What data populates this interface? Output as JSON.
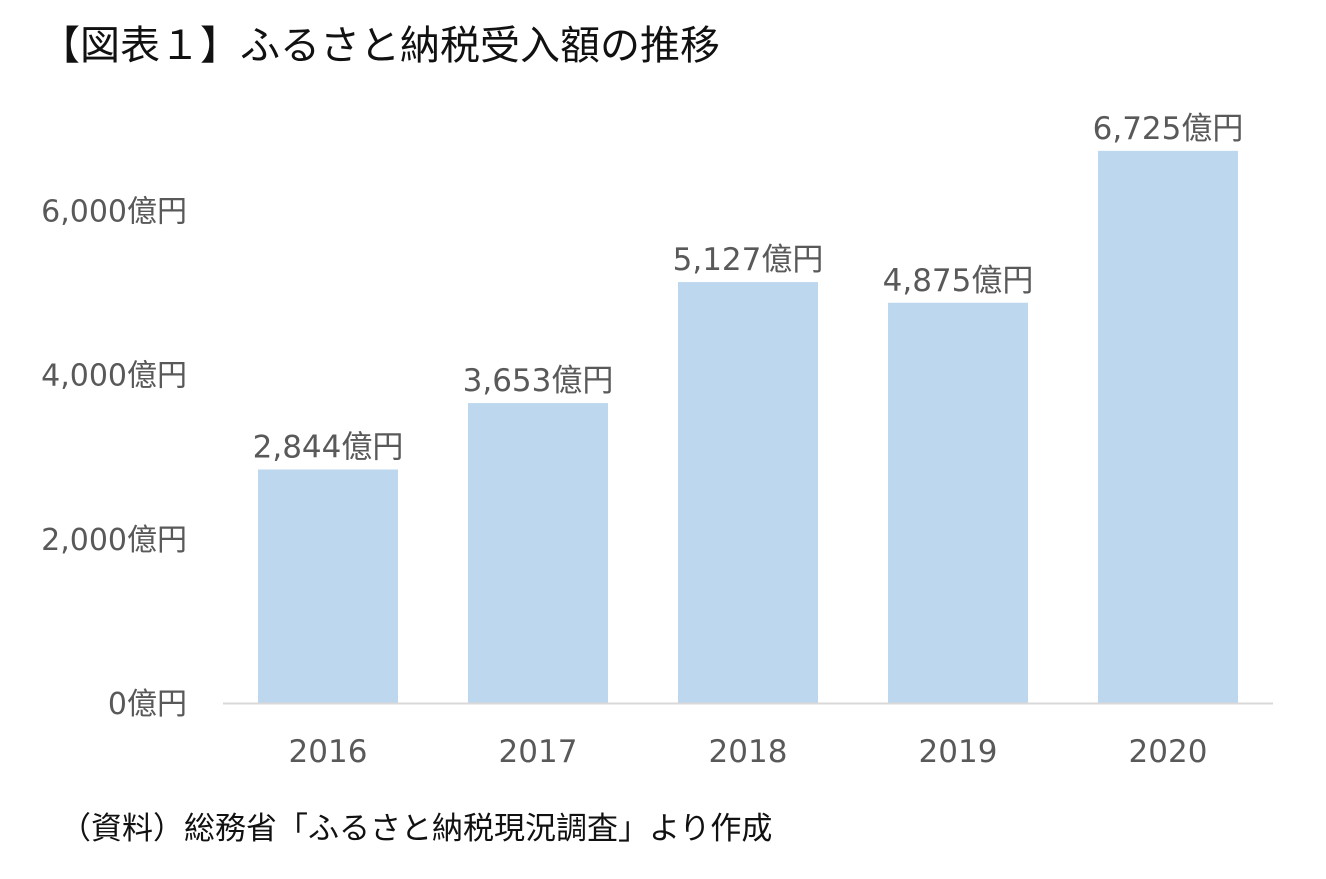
{
  "title": "【図表１】ふるさと納税受入額の推移",
  "source_note": "（資料）総務省「ふるさと納税現況調査」より作成",
  "chart_data": {
    "type": "bar",
    "categories": [
      "2016",
      "2017",
      "2018",
      "2019",
      "2020"
    ],
    "values": [
      2844,
      3653,
      5127,
      4875,
      6725
    ],
    "data_labels": [
      "2,844億円",
      "3,653億円",
      "5,127億円",
      "4,875億円",
      "6,725億円"
    ],
    "ylim": [
      0,
      7000
    ],
    "yticks": [
      0,
      2000,
      4000,
      6000
    ],
    "ytick_labels": [
      "0億円",
      "2,000億円",
      "4,000億円",
      "6,000億円"
    ],
    "xlabel": "",
    "ylabel": "",
    "grid": false,
    "legend": "none",
    "bar_color": "#BDD7EE",
    "axis_color": "#D9D9D9",
    "label_color": "#595959"
  }
}
